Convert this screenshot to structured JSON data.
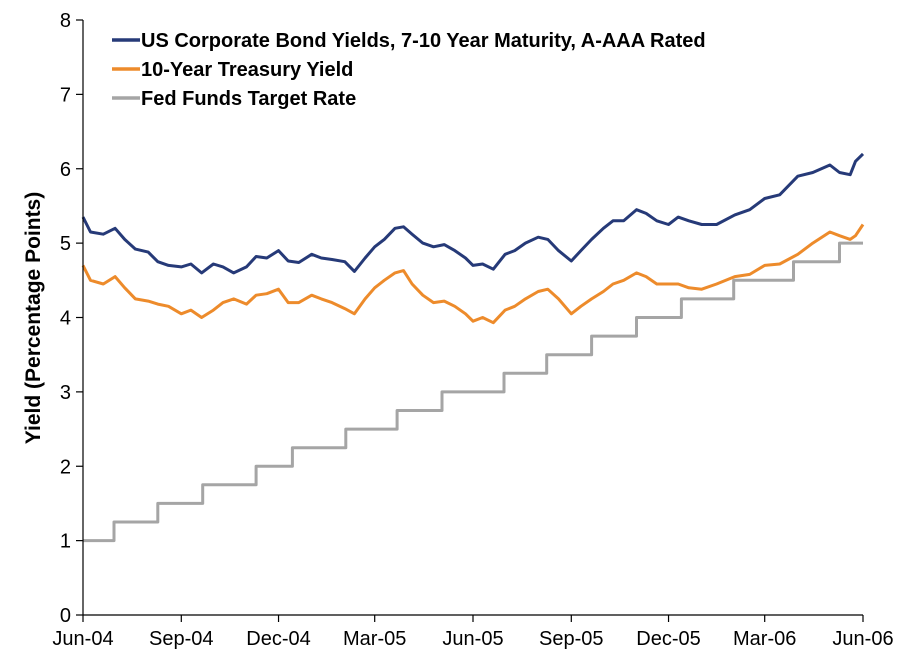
{
  "chart_data": {
    "type": "line",
    "title": "",
    "xlabel": "",
    "ylabel": "Yield (Percentage Points)",
    "ylim": [
      0,
      8
    ],
    "yticks": [
      0,
      1,
      2,
      3,
      4,
      5,
      6,
      7,
      8
    ],
    "xlim": [
      "2004-06-01",
      "2006-06-01"
    ],
    "xticks": [
      {
        "date": "2004-06-01",
        "label": "Jun-04"
      },
      {
        "date": "2004-09-01",
        "label": "Sep-04"
      },
      {
        "date": "2004-12-01",
        "label": "Dec-04"
      },
      {
        "date": "2005-03-01",
        "label": "Mar-05"
      },
      {
        "date": "2005-06-01",
        "label": "Jun-05"
      },
      {
        "date": "2005-09-01",
        "label": "Sep-05"
      },
      {
        "date": "2005-12-01",
        "label": "Dec-05"
      },
      {
        "date": "2006-03-01",
        "label": "Mar-06"
      },
      {
        "date": "2006-06-01",
        "label": "Jun-06"
      }
    ],
    "grid": false,
    "legend_position": "top-left",
    "series": [
      {
        "name": "US Corporate Bond Yields, 7-10 Year Maturity, A-AAA Rated",
        "color": "#263a78",
        "step": false,
        "points": [
          [
            "2004-06-01",
            5.35
          ],
          [
            "2004-06-08",
            5.15
          ],
          [
            "2004-06-20",
            5.12
          ],
          [
            "2004-07-01",
            5.2
          ],
          [
            "2004-07-10",
            5.05
          ],
          [
            "2004-07-20",
            4.92
          ],
          [
            "2004-08-01",
            4.88
          ],
          [
            "2004-08-10",
            4.75
          ],
          [
            "2004-08-20",
            4.7
          ],
          [
            "2004-09-01",
            4.68
          ],
          [
            "2004-09-10",
            4.72
          ],
          [
            "2004-09-20",
            4.6
          ],
          [
            "2004-10-01",
            4.72
          ],
          [
            "2004-10-10",
            4.68
          ],
          [
            "2004-10-20",
            4.6
          ],
          [
            "2004-11-01",
            4.68
          ],
          [
            "2004-11-10",
            4.82
          ],
          [
            "2004-11-20",
            4.8
          ],
          [
            "2004-12-01",
            4.9
          ],
          [
            "2004-12-10",
            4.76
          ],
          [
            "2004-12-20",
            4.74
          ],
          [
            "2005-01-01",
            4.85
          ],
          [
            "2005-01-10",
            4.8
          ],
          [
            "2005-01-20",
            4.78
          ],
          [
            "2005-02-01",
            4.75
          ],
          [
            "2005-02-10",
            4.62
          ],
          [
            "2005-02-20",
            4.8
          ],
          [
            "2005-03-01",
            4.95
          ],
          [
            "2005-03-10",
            5.05
          ],
          [
            "2005-03-20",
            5.2
          ],
          [
            "2005-03-28",
            5.22
          ],
          [
            "2005-04-05",
            5.12
          ],
          [
            "2005-04-15",
            5.0
          ],
          [
            "2005-04-25",
            4.95
          ],
          [
            "2005-05-05",
            4.98
          ],
          [
            "2005-05-15",
            4.9
          ],
          [
            "2005-05-25",
            4.8
          ],
          [
            "2005-06-01",
            4.7
          ],
          [
            "2005-06-10",
            4.72
          ],
          [
            "2005-06-20",
            4.65
          ],
          [
            "2005-07-01",
            4.85
          ],
          [
            "2005-07-10",
            4.9
          ],
          [
            "2005-07-20",
            5.0
          ],
          [
            "2005-08-01",
            5.08
          ],
          [
            "2005-08-10",
            5.05
          ],
          [
            "2005-08-20",
            4.9
          ],
          [
            "2005-09-01",
            4.76
          ],
          [
            "2005-09-10",
            4.9
          ],
          [
            "2005-09-20",
            5.05
          ],
          [
            "2005-10-01",
            5.2
          ],
          [
            "2005-10-10",
            5.3
          ],
          [
            "2005-10-20",
            5.3
          ],
          [
            "2005-11-01",
            5.45
          ],
          [
            "2005-11-10",
            5.4
          ],
          [
            "2005-11-20",
            5.3
          ],
          [
            "2005-12-01",
            5.25
          ],
          [
            "2005-12-10",
            5.35
          ],
          [
            "2005-12-20",
            5.3
          ],
          [
            "2006-01-01",
            5.25
          ],
          [
            "2006-01-15",
            5.25
          ],
          [
            "2006-02-01",
            5.38
          ],
          [
            "2006-02-15",
            5.45
          ],
          [
            "2006-03-01",
            5.6
          ],
          [
            "2006-03-15",
            5.65
          ],
          [
            "2006-04-01",
            5.9
          ],
          [
            "2006-04-15",
            5.95
          ],
          [
            "2006-05-01",
            6.05
          ],
          [
            "2006-05-10",
            5.95
          ],
          [
            "2006-05-20",
            5.92
          ],
          [
            "2006-05-25",
            6.1
          ],
          [
            "2006-06-01",
            6.2
          ]
        ]
      },
      {
        "name": "10-Year Treasury Yield",
        "color": "#ed8b2b",
        "step": false,
        "points": [
          [
            "2004-06-01",
            4.7
          ],
          [
            "2004-06-08",
            4.5
          ],
          [
            "2004-06-20",
            4.45
          ],
          [
            "2004-07-01",
            4.55
          ],
          [
            "2004-07-10",
            4.4
          ],
          [
            "2004-07-20",
            4.25
          ],
          [
            "2004-08-01",
            4.22
          ],
          [
            "2004-08-10",
            4.18
          ],
          [
            "2004-08-20",
            4.15
          ],
          [
            "2004-09-01",
            4.05
          ],
          [
            "2004-09-10",
            4.1
          ],
          [
            "2004-09-20",
            4.0
          ],
          [
            "2004-10-01",
            4.1
          ],
          [
            "2004-10-10",
            4.2
          ],
          [
            "2004-10-20",
            4.25
          ],
          [
            "2004-11-01",
            4.18
          ],
          [
            "2004-11-10",
            4.3
          ],
          [
            "2004-11-20",
            4.32
          ],
          [
            "2004-12-01",
            4.38
          ],
          [
            "2004-12-10",
            4.2
          ],
          [
            "2004-12-20",
            4.2
          ],
          [
            "2005-01-01",
            4.3
          ],
          [
            "2005-01-10",
            4.25
          ],
          [
            "2005-01-20",
            4.2
          ],
          [
            "2005-02-01",
            4.12
          ],
          [
            "2005-02-10",
            4.05
          ],
          [
            "2005-02-20",
            4.25
          ],
          [
            "2005-03-01",
            4.4
          ],
          [
            "2005-03-10",
            4.5
          ],
          [
            "2005-03-20",
            4.6
          ],
          [
            "2005-03-28",
            4.63
          ],
          [
            "2005-04-05",
            4.45
          ],
          [
            "2005-04-15",
            4.3
          ],
          [
            "2005-04-25",
            4.2
          ],
          [
            "2005-05-05",
            4.22
          ],
          [
            "2005-05-15",
            4.15
          ],
          [
            "2005-05-25",
            4.05
          ],
          [
            "2005-06-01",
            3.95
          ],
          [
            "2005-06-10",
            4.0
          ],
          [
            "2005-06-20",
            3.93
          ],
          [
            "2005-07-01",
            4.1
          ],
          [
            "2005-07-10",
            4.15
          ],
          [
            "2005-07-20",
            4.25
          ],
          [
            "2005-08-01",
            4.35
          ],
          [
            "2005-08-10",
            4.38
          ],
          [
            "2005-08-20",
            4.25
          ],
          [
            "2005-09-01",
            4.05
          ],
          [
            "2005-09-10",
            4.15
          ],
          [
            "2005-09-20",
            4.25
          ],
          [
            "2005-10-01",
            4.35
          ],
          [
            "2005-10-10",
            4.45
          ],
          [
            "2005-10-20",
            4.5
          ],
          [
            "2005-11-01",
            4.6
          ],
          [
            "2005-11-10",
            4.55
          ],
          [
            "2005-11-20",
            4.45
          ],
          [
            "2005-12-01",
            4.45
          ],
          [
            "2005-12-10",
            4.45
          ],
          [
            "2005-12-20",
            4.4
          ],
          [
            "2006-01-01",
            4.38
          ],
          [
            "2006-01-15",
            4.45
          ],
          [
            "2006-02-01",
            4.55
          ],
          [
            "2006-02-15",
            4.58
          ],
          [
            "2006-03-01",
            4.7
          ],
          [
            "2006-03-15",
            4.72
          ],
          [
            "2006-04-01",
            4.85
          ],
          [
            "2006-04-15",
            5.0
          ],
          [
            "2006-05-01",
            5.15
          ],
          [
            "2006-05-10",
            5.1
          ],
          [
            "2006-05-20",
            5.05
          ],
          [
            "2006-05-25",
            5.1
          ],
          [
            "2006-06-01",
            5.25
          ]
        ]
      },
      {
        "name": "Fed Funds Target Rate",
        "color": "#a5a5a5",
        "step": true,
        "points": [
          [
            "2004-06-01",
            1.0
          ],
          [
            "2004-06-30",
            1.25
          ],
          [
            "2004-08-10",
            1.5
          ],
          [
            "2004-09-21",
            1.75
          ],
          [
            "2004-11-10",
            2.0
          ],
          [
            "2004-12-14",
            2.25
          ],
          [
            "2005-02-02",
            2.5
          ],
          [
            "2005-03-22",
            2.75
          ],
          [
            "2005-05-03",
            3.0
          ],
          [
            "2005-06-30",
            3.25
          ],
          [
            "2005-08-09",
            3.5
          ],
          [
            "2005-09-20",
            3.75
          ],
          [
            "2005-11-01",
            4.0
          ],
          [
            "2005-12-13",
            4.25
          ],
          [
            "2006-01-31",
            4.5
          ],
          [
            "2006-03-28",
            4.75
          ],
          [
            "2006-05-10",
            5.0
          ],
          [
            "2006-06-01",
            5.0
          ]
        ]
      }
    ]
  }
}
